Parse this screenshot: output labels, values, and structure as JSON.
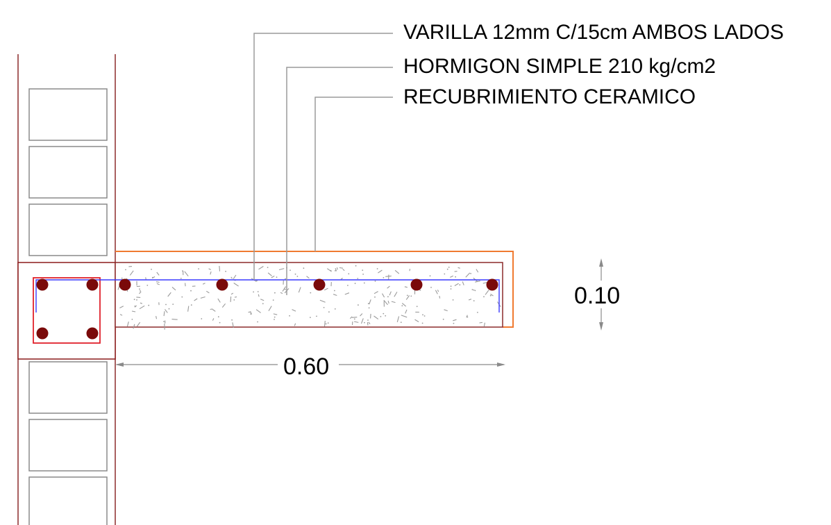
{
  "labels": {
    "rebar": "VARILLA 12mm C/15cm AMBOS LADOS",
    "concrete": "HORMIGON SIMPLE 210 kg/cm2",
    "cover": "RECUBRIMIENTO CERAMICO"
  },
  "dimensions": {
    "height": "0.10",
    "width": "0.60"
  },
  "colors": {
    "wall_line": "#8b2a2a",
    "brick": "#8a8a8a",
    "column_outline": "#8b1a1a",
    "stirrup": "#e0202a",
    "rebar": "#7a0a0a",
    "slab_outline": "#8b2a2a",
    "ceramic_cover": "#f07a30",
    "rebar_line": "#3a3aff",
    "leader": "#9a9a9a",
    "dimension": "#8a8a8a"
  }
}
